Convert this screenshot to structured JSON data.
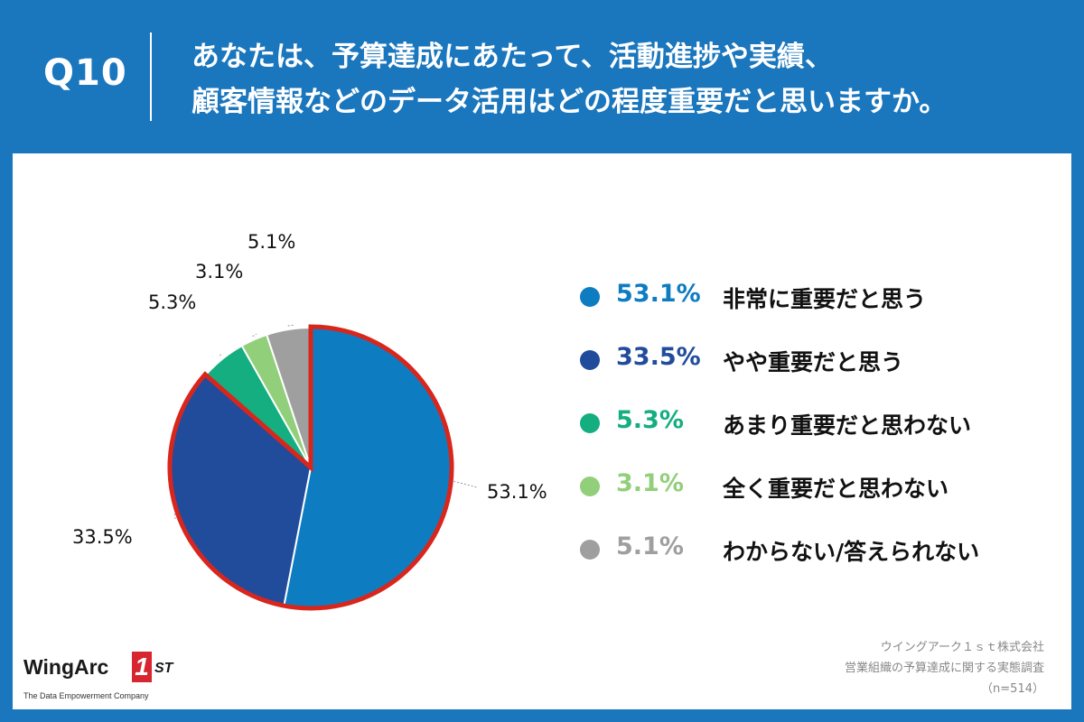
{
  "header": {
    "question_number": "Q10",
    "question_line1": "あなたは、予算達成にあたって、活動進捗や実績、",
    "question_line2": "顧客情報などのデータ活用はどの程度重要だと思いますか。"
  },
  "colors": {
    "header_bg": "#1a76bd",
    "panel_bg": "#ffffff",
    "highlight_border": "#d9261c"
  },
  "chart_data": {
    "type": "pie",
    "title": "あなたは、予算達成にあたって、活動進捗や実績、顧客情報などのデータ活用はどの程度重要だと思いますか。",
    "start_angle_deg": 0,
    "direction": "clockwise",
    "slices": [
      {
        "label": "非常に重要だと思う",
        "value": 53.1,
        "display": "53.1%",
        "color": "#0e7cc1",
        "highlighted": true
      },
      {
        "label": "やや重要だと思う",
        "value": 33.5,
        "display": "33.5%",
        "color": "#214c9b",
        "highlighted": true
      },
      {
        "label": "あまり重要だと思わない",
        "value": 5.3,
        "display": "5.3%",
        "color": "#14ae80",
        "highlighted": false
      },
      {
        "label": "全く重要だと思わない",
        "value": 3.1,
        "display": "3.1%",
        "color": "#92cf7a",
        "highlighted": false
      },
      {
        "label": "わからない/答えられない",
        "value": 5.1,
        "display": "5.1%",
        "color": "#9f9f9f",
        "highlighted": false
      }
    ],
    "legend_position": "right"
  },
  "legend": {
    "items": [
      {
        "value": "53.1%",
        "label": "非常に重要だと思う",
        "color": "#0e7cc1"
      },
      {
        "value": "33.5%",
        "label": "やや重要だと思う",
        "color": "#214c9b"
      },
      {
        "value": "5.3%",
        "label": "あまり重要だと思わない",
        "color": "#14ae80"
      },
      {
        "value": "3.1%",
        "label": "全く重要だと思わない",
        "color": "#92cf7a"
      },
      {
        "value": "5.1%",
        "label": "わからない/答えられない",
        "color": "#9f9f9f"
      }
    ]
  },
  "logo": {
    "name": "WingArc",
    "mark": "1",
    "suffix": "ST",
    "tagline": "The Data Empowerment Company"
  },
  "source": {
    "company": "ウイングアーク１ｓｔ株式会社",
    "survey": "営業組織の予算達成に関する実態調査",
    "sample": "（n=514）"
  }
}
